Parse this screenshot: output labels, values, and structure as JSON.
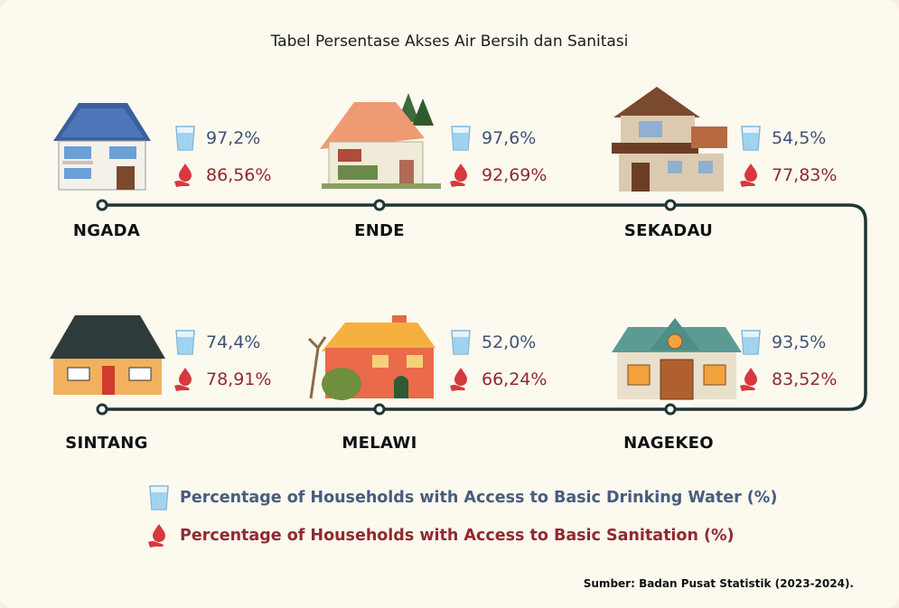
{
  "title": "Tabel Persentase Akses Air Bersih dan Sanitasi",
  "colors": {
    "water": "#3f5276",
    "sanitation": "#8f2a30",
    "route": "#1f3535",
    "glass": "#9fd3ef",
    "drop": "#d8383f"
  },
  "icons": {
    "water": "water-glass-icon",
    "sanitation": "hand-water-drop-icon"
  },
  "chart_data": {
    "type": "table",
    "title": "Tabel Persentase Akses Air Bersih dan Sanitasi",
    "categories": [
      "NGADA",
      "ENDE",
      "SEKADAU",
      "SINTANG",
      "MELAWI",
      "NAGEKEO"
    ],
    "series": [
      {
        "name": "Percentage of Households with Access to Basic Drinking Water (%)",
        "values": [
          97.2,
          97.6,
          54.5,
          74.4,
          52.0,
          93.5
        ],
        "labels": [
          "97,2%",
          "97,6%",
          "54,5%",
          "74,4%",
          "52,0%",
          "93,5%"
        ]
      },
      {
        "name": "Percentage of Households with Access to Basic Sanitation (%)",
        "values": [
          86.56,
          92.69,
          77.83,
          78.91,
          66.24,
          83.52
        ],
        "labels": [
          "86,56%",
          "92,69%",
          "77,83%",
          "78,91%",
          "66,24%",
          "83,52%"
        ]
      }
    ]
  },
  "legend": {
    "water": "Percentage of Households with Access to Basic Drinking Water (%)",
    "sanitation": "Percentage of Households with Access to Basic Sanitation (%)"
  },
  "source": "Sumber: Badan Pusat Statistik (2023-2024)."
}
